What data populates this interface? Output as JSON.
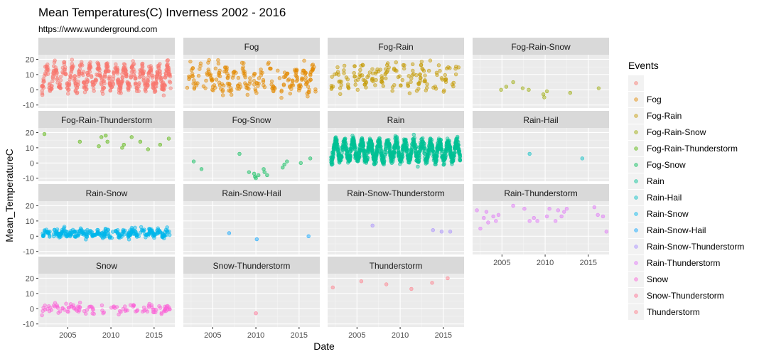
{
  "chart_data": {
    "type": "scatter",
    "title": "Mean Temperatures(C) Inverness 2002 - 2016",
    "subtitle": "https://www.wunderground.com",
    "xlabel": "Date",
    "ylabel": "Mean_TemperatureC",
    "xlim": [
      2001.6,
      2017.4
    ],
    "ylim": [
      -12,
      23
    ],
    "x_ticks": [
      2005,
      2010,
      2015
    ],
    "y_ticks": [
      -10,
      0,
      10,
      20
    ],
    "grid": true,
    "legend": {
      "title": "Events",
      "placement": "right"
    },
    "facets": [
      {
        "label": "",
        "color": "#F8766D",
        "style": "seasonal",
        "count": 520,
        "base": 8,
        "amp": 7,
        "noise": 3,
        "x": [],
        "y": []
      },
      {
        "label": "Fog",
        "color": "#E38900",
        "style": "seasonal",
        "count": 230,
        "base": 7,
        "amp": 7,
        "noise": 4,
        "x": [],
        "y": []
      },
      {
        "label": "Fog-Rain",
        "color": "#C49A00",
        "style": "seasonal",
        "count": 160,
        "base": 9,
        "amp": 6,
        "noise": 4,
        "x": [],
        "y": []
      },
      {
        "label": "Fog-Rain-Snow",
        "color": "#99A800",
        "style": "points",
        "x": [
          2004.9,
          2005.5,
          2006.3,
          2007.4,
          2008.1,
          2009.8,
          2009.9,
          2010.2,
          2012.9,
          2016.2
        ],
        "y": [
          0,
          2,
          5,
          1,
          0,
          -3,
          -5,
          -1,
          -2,
          1
        ]
      },
      {
        "label": "Fog-Rain-Thunderstorm",
        "color": "#53B400",
        "style": "points",
        "x": [
          2002.3,
          2006.4,
          2008.6,
          2008.9,
          2009.4,
          2009.6,
          2011.3,
          2011.5,
          2012.4,
          2013.4,
          2014.3,
          2015.7,
          2016.7
        ],
        "y": [
          19,
          14,
          11,
          17,
          18,
          14,
          10,
          12,
          17,
          14,
          9,
          12,
          16
        ]
      },
      {
        "label": "Fog-Snow",
        "color": "#00BC56",
        "style": "points",
        "x": [
          2002.8,
          2003.7,
          2008.1,
          2009.2,
          2009.8,
          2009.9,
          2010.0,
          2010.3,
          2010.9,
          2011.0,
          2011.3,
          2013.1,
          2013.3,
          2013.6,
          2015.2,
          2016.3
        ],
        "y": [
          1,
          -4,
          6,
          -6,
          -7,
          -9,
          -10,
          -8,
          -4,
          -6,
          -8,
          -3,
          -1,
          1,
          0,
          3
        ]
      },
      {
        "label": "Rain",
        "color": "#00C094",
        "style": "seasonal",
        "count": 1200,
        "base": 8,
        "amp": 6,
        "noise": 2.5,
        "x": [],
        "y": []
      },
      {
        "label": "Rain-Hail",
        "color": "#00BFC4",
        "style": "points",
        "x": [
          2008.2,
          2014.3
        ],
        "y": [
          6,
          3
        ]
      },
      {
        "label": "Rain-Snow",
        "color": "#00B6EB",
        "style": "seasonal",
        "count": 320,
        "base": 2,
        "amp": 1.5,
        "noise": 1.8,
        "x": [],
        "y": []
      },
      {
        "label": "Rain-Snow-Hail",
        "color": "#06A4FF",
        "style": "points",
        "x": [
          2006.9,
          2010.1,
          2016.1
        ],
        "y": [
          2,
          -2,
          0
        ]
      },
      {
        "label": "Rain-Snow-Thunderstorm",
        "color": "#A58AFF",
        "style": "points",
        "x": [
          2006.8,
          2013.8,
          2014.8,
          2015.8
        ],
        "y": [
          7,
          4,
          3,
          3
        ]
      },
      {
        "label": "Rain-Thunderstorm",
        "color": "#DF70F8",
        "style": "points",
        "x": [
          2002.1,
          2002.5,
          2002.9,
          2003.2,
          2003.4,
          2004.0,
          2004.3,
          2004.6,
          2006.3,
          2007.6,
          2008.2,
          2008.7,
          2009.1,
          2010.2,
          2010.5,
          2011.2,
          2011.5,
          2011.9,
          2012.2,
          2012.5,
          2015.7,
          2016.1,
          2016.7,
          2017.1
        ],
        "y": [
          17,
          5,
          12,
          16,
          9,
          13,
          10,
          14,
          20,
          18,
          10,
          12,
          10,
          13,
          18,
          10,
          17,
          13,
          16,
          18,
          19,
          14,
          13,
          3
        ]
      },
      {
        "label": "Snow",
        "color": "#FB61D7",
        "style": "seasonal",
        "count": 110,
        "base": 0,
        "amp": 1.5,
        "noise": 2,
        "x": [],
        "y": []
      },
      {
        "label": "Snow-Thunderstorm",
        "color": "#FF6C91",
        "style": "points",
        "x": [
          2010.0
        ],
        "y": [
          -3
        ]
      },
      {
        "label": "Thunderstorm",
        "color": "#FF7A87",
        "style": "points",
        "x": [
          2002.2,
          2005.5,
          2008.4,
          2011.3,
          2013.7,
          2015.5
        ],
        "y": [
          14,
          18,
          16,
          13,
          17,
          20
        ]
      }
    ]
  }
}
